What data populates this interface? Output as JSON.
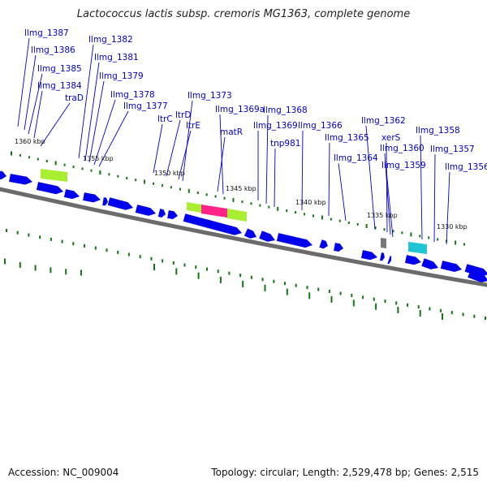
{
  "title": "Lactococcus lactis subsp. cremoris MG1363, complete genome",
  "footer": {
    "accession": "Accession: NC_009004",
    "topology": "Topology: circular; Length: 2,529,478 bp; Genes: 2,515"
  },
  "colors": {
    "gene": "#0000ee",
    "gene_label": "#0000cc",
    "tick": "#117711",
    "backbone": "#6b6b6b",
    "feature_lime": "#aaee33",
    "feature_pink": "#ff2288",
    "feature_cyan": "#22c4d4",
    "feature_gray": "#777777"
  },
  "kbp_labels": [
    "1360 kbp",
    "1355 kbp",
    "1350 kbp",
    "1345 kbp",
    "1340 kbp",
    "1335 kbp",
    "1330 kbp"
  ],
  "gene_labels": [
    "llmg_1387",
    "llmg_1386",
    "llmg_1385",
    "llmg_1384",
    "traD",
    "llmg_1382",
    "llmg_1381",
    "llmg_1379",
    "llmg_1378",
    "llmg_1377",
    "ltrC",
    "ltrD",
    "ltrE",
    "llmg_1373",
    "matR",
    "llmg_1369a",
    "llmg_1369",
    "llmg_1368",
    "tnp981",
    "llmg_1366",
    "llmg_1365",
    "llmg_1364",
    "llmg_1362",
    "xerS",
    "llmg_1360",
    "llmg_1359",
    "llmg_1358",
    "llmg_1357",
    "llmg_1356"
  ]
}
